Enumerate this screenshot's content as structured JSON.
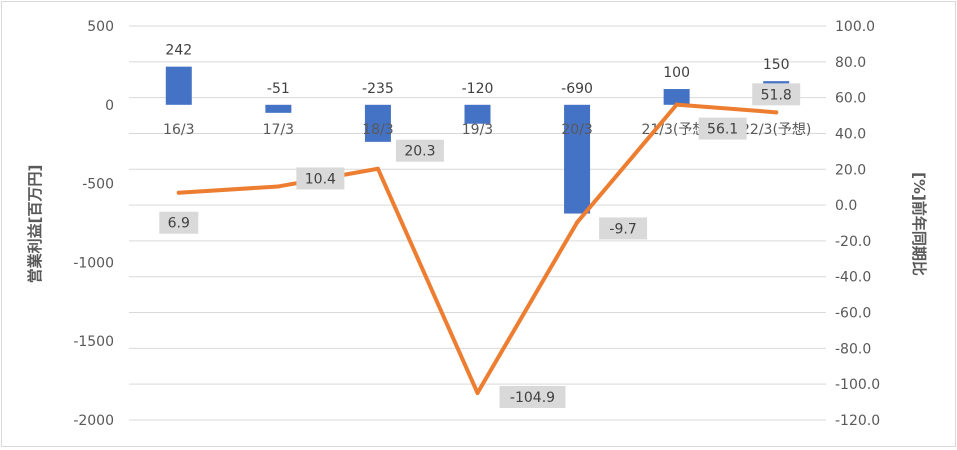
{
  "chart_data": {
    "type": "bar+line",
    "categories": [
      "16/3",
      "17/3",
      "18/3",
      "19/3",
      "20/3",
      "21/3(予想)",
      "22/3(予想)"
    ],
    "series": [
      {
        "name": "",
        "type": "bar",
        "axis": "left",
        "values": [
          242,
          -51,
          -235,
          -120,
          -690,
          100,
          150
        ],
        "labels": [
          "242",
          "-51",
          "-235",
          "-120",
          "-690",
          "100",
          "150"
        ],
        "color": "#4472c4"
      },
      {
        "name": "",
        "type": "line",
        "axis": "right",
        "values": [
          6.9,
          10.4,
          20.3,
          -104.9,
          -9.7,
          56.1,
          51.8
        ],
        "labels": [
          "6.9",
          "10.4",
          "20.3",
          "-104.9",
          "-9.7",
          "56.1",
          "51.8"
        ],
        "color": "#ed7d31"
      }
    ],
    "y_left": {
      "label": "営業利益[百万円]",
      "min": -2000,
      "max": 500,
      "ticks": [
        500,
        0,
        -500,
        -1000,
        -1500,
        -2000
      ],
      "tick_labels": [
        "500",
        "0",
        "-500",
        "-1000",
        "-1500",
        "-2000"
      ]
    },
    "y_right": {
      "label": "[%]前年同期比",
      "min": -120,
      "max": 100,
      "ticks": [
        100,
        80,
        60,
        40,
        20,
        0,
        -20,
        -40,
        -60,
        -80,
        -100,
        -120
      ],
      "tick_labels": [
        "100.0",
        "80.0",
        "60.0",
        "40.0",
        "20.0",
        "0.0",
        "-20.0",
        "-40.0",
        "-60.0",
        "-80.0",
        "-100.0",
        "-120.0"
      ]
    },
    "grid": true,
    "legend": "none",
    "label_box_color": "#d9d9d9"
  }
}
